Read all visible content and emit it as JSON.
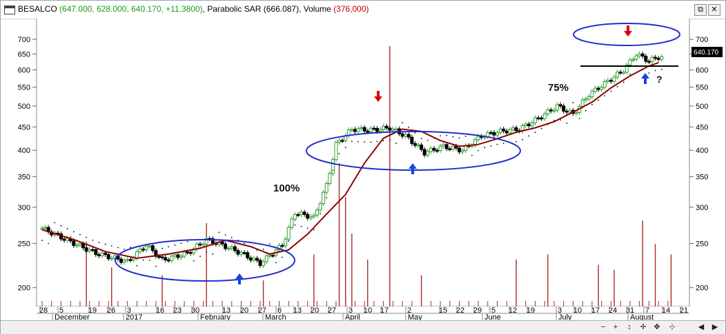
{
  "window": {
    "symbol": "BESALCO",
    "ohlc_text": "(647.000, 628.000, 640.170, +11.3800)",
    "sar_label": "Parabolic SAR",
    "sar_value": "(666.087)",
    "volume_label": "Volume",
    "volume_value": "(376,000)",
    "restore_icon": "restore-icon",
    "close_icon": "close-icon"
  },
  "colors": {
    "up_candle": "#2e9e2e",
    "down_candle": "#000000",
    "moving_average": "#8b0000",
    "sar_dots": "#000000",
    "volume": "#a52a2a",
    "annotation_ellipse": "#1f2fcc",
    "arrow_up": "#1546e0",
    "arrow_down": "#e00000",
    "last_price_bg": "#000000"
  },
  "annotations": {
    "pct_100": "100%",
    "pct_75": "75%",
    "question": "?",
    "last_price": "640.170"
  },
  "bottom": {
    "nav_icons": [
      "zoom-out-icon",
      "zoom-in-icon",
      "scroll-icon",
      "cross-icon",
      "pan-icon",
      "prev-icon",
      "next-icon"
    ]
  },
  "chart_data": {
    "type": "candlestick",
    "y_scale": "log",
    "ylim": [
      195,
      720
    ],
    "y_ticks": [
      700,
      650,
      600,
      550,
      500,
      450,
      400,
      350,
      300,
      250,
      200
    ],
    "x_day_labels": [
      "28",
      "5",
      "19",
      "26",
      "3",
      "16",
      "23",
      "30",
      "13",
      "20",
      "27",
      "6",
      "13",
      "20",
      "27",
      "3",
      "10",
      "17",
      "2",
      "15",
      "22",
      "29",
      "5",
      "12",
      "19",
      "3",
      "10",
      "17",
      "24",
      "31",
      "7",
      "14",
      "21"
    ],
    "x_month_labels": [
      "December",
      "2017",
      "February",
      "March",
      "April",
      "May",
      "June",
      "July",
      "August"
    ],
    "close_series": [
      {
        "t": 0,
        "v": 270
      },
      {
        "t": 9,
        "v": 252
      },
      {
        "t": 17,
        "v": 238
      },
      {
        "t": 27,
        "v": 228
      },
      {
        "t": 33,
        "v": 248
      },
      {
        "t": 38,
        "v": 230
      },
      {
        "t": 46,
        "v": 238
      },
      {
        "t": 52,
        "v": 255
      },
      {
        "t": 57,
        "v": 248
      },
      {
        "t": 63,
        "v": 238
      },
      {
        "t": 69,
        "v": 226
      },
      {
        "t": 76,
        "v": 248
      },
      {
        "t": 80,
        "v": 292
      },
      {
        "t": 86,
        "v": 285
      },
      {
        "t": 90,
        "v": 335
      },
      {
        "t": 93,
        "v": 412
      },
      {
        "t": 98,
        "v": 445
      },
      {
        "t": 104,
        "v": 443
      },
      {
        "t": 110,
        "v": 448
      },
      {
        "t": 115,
        "v": 430
      },
      {
        "t": 121,
        "v": 395
      },
      {
        "t": 127,
        "v": 408
      },
      {
        "t": 133,
        "v": 400
      },
      {
        "t": 139,
        "v": 430
      },
      {
        "t": 145,
        "v": 440
      },
      {
        "t": 151,
        "v": 445
      },
      {
        "t": 157,
        "v": 470
      },
      {
        "t": 163,
        "v": 500
      },
      {
        "t": 168,
        "v": 480
      },
      {
        "t": 173,
        "v": 530
      },
      {
        "t": 178,
        "v": 560
      },
      {
        "t": 184,
        "v": 600
      },
      {
        "t": 188,
        "v": 650
      },
      {
        "t": 192,
        "v": 628
      },
      {
        "t": 195,
        "v": 640
      }
    ],
    "moving_average": [
      {
        "t": 0,
        "v": 268
      },
      {
        "t": 10,
        "v": 255
      },
      {
        "t": 20,
        "v": 240
      },
      {
        "t": 30,
        "v": 232
      },
      {
        "t": 40,
        "v": 237
      },
      {
        "t": 50,
        "v": 244
      },
      {
        "t": 58,
        "v": 254
      },
      {
        "t": 66,
        "v": 246
      },
      {
        "t": 72,
        "v": 237
      },
      {
        "t": 78,
        "v": 242
      },
      {
        "t": 84,
        "v": 262
      },
      {
        "t": 90,
        "v": 290
      },
      {
        "t": 96,
        "v": 320
      },
      {
        "t": 102,
        "v": 375
      },
      {
        "t": 108,
        "v": 425
      },
      {
        "t": 114,
        "v": 445
      },
      {
        "t": 120,
        "v": 440
      },
      {
        "t": 126,
        "v": 420
      },
      {
        "t": 132,
        "v": 408
      },
      {
        "t": 138,
        "v": 412
      },
      {
        "t": 144,
        "v": 424
      },
      {
        "t": 150,
        "v": 438
      },
      {
        "t": 156,
        "v": 448
      },
      {
        "t": 162,
        "v": 462
      },
      {
        "t": 168,
        "v": 485
      },
      {
        "t": 174,
        "v": 510
      },
      {
        "t": 180,
        "v": 548
      },
      {
        "t": 186,
        "v": 582
      },
      {
        "t": 192,
        "v": 612
      },
      {
        "t": 195,
        "v": 622
      }
    ],
    "volume_spikes": [
      {
        "t": 14,
        "v": 0.25
      },
      {
        "t": 22,
        "v": 0.15
      },
      {
        "t": 38,
        "v": 0.12
      },
      {
        "t": 52,
        "v": 0.32
      },
      {
        "t": 70,
        "v": 0.1
      },
      {
        "t": 86,
        "v": 0.2
      },
      {
        "t": 94,
        "v": 0.55
      },
      {
        "t": 96,
        "v": 0.42
      },
      {
        "t": 98,
        "v": 0.28
      },
      {
        "t": 103,
        "v": 0.18
      },
      {
        "t": 110,
        "v": 1.0
      },
      {
        "t": 120,
        "v": 0.12
      },
      {
        "t": 150,
        "v": 0.18
      },
      {
        "t": 160,
        "v": 0.2
      },
      {
        "t": 176,
        "v": 0.16
      },
      {
        "t": 181,
        "v": 0.14
      },
      {
        "t": 190,
        "v": 0.33
      },
      {
        "t": 194,
        "v": 0.24
      },
      {
        "t": 199,
        "v": 0.2
      }
    ]
  }
}
